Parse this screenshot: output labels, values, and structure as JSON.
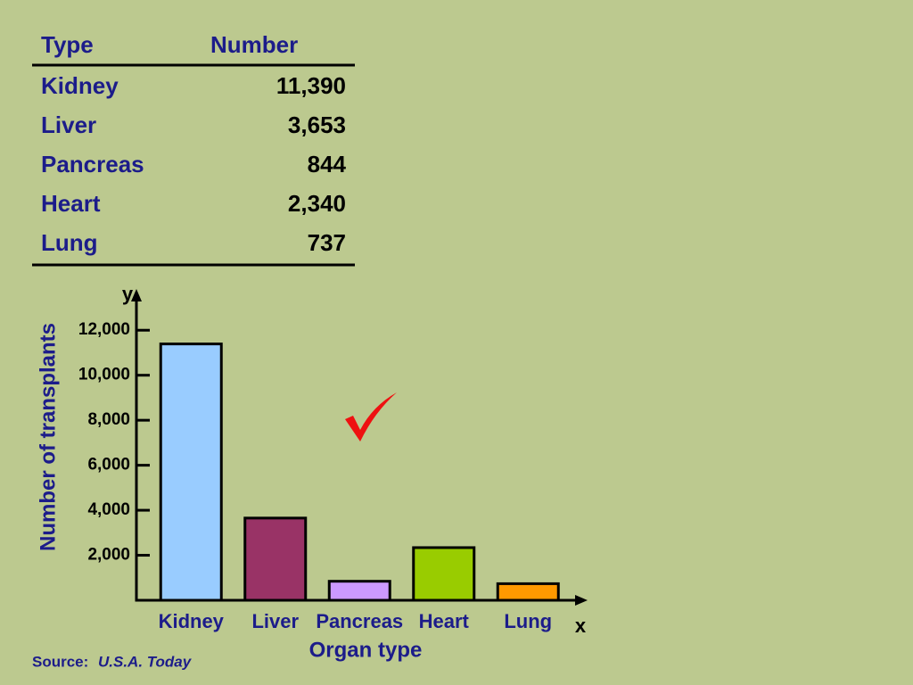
{
  "table": {
    "header": [
      "Type",
      "Number"
    ],
    "rows": [
      [
        "Kidney",
        "11,390"
      ],
      [
        "Liver",
        "3,653"
      ],
      [
        "Pancreas",
        "844"
      ],
      [
        "Heart",
        "2,340"
      ],
      [
        "Lung",
        "737"
      ]
    ]
  },
  "chart_data": {
    "type": "bar",
    "categories": [
      "Kidney",
      "Liver",
      "Pancreas",
      "Heart",
      "Lung"
    ],
    "values": [
      11390,
      3653,
      844,
      2340,
      737
    ],
    "colors": [
      "#99ccff",
      "#993366",
      "#cc99ff",
      "#99cc00",
      "#ff9900"
    ],
    "ylim": [
      0,
      13000
    ],
    "yticks": [
      {
        "value": 2000,
        "label": "2,000"
      },
      {
        "value": 4000,
        "label": "4,000"
      },
      {
        "value": 6000,
        "label": "6,000"
      },
      {
        "value": 8000,
        "label": "8,000"
      },
      {
        "value": 10000,
        "label": "10,000"
      },
      {
        "value": 12000,
        "label": "12,000"
      }
    ],
    "y_label": "Number of transplants",
    "x_label": "Organ type",
    "y_axis_letter": "y",
    "x_axis_letter": "x"
  },
  "source": {
    "prefix": "Source:",
    "name": "U.S.A. Today"
  }
}
